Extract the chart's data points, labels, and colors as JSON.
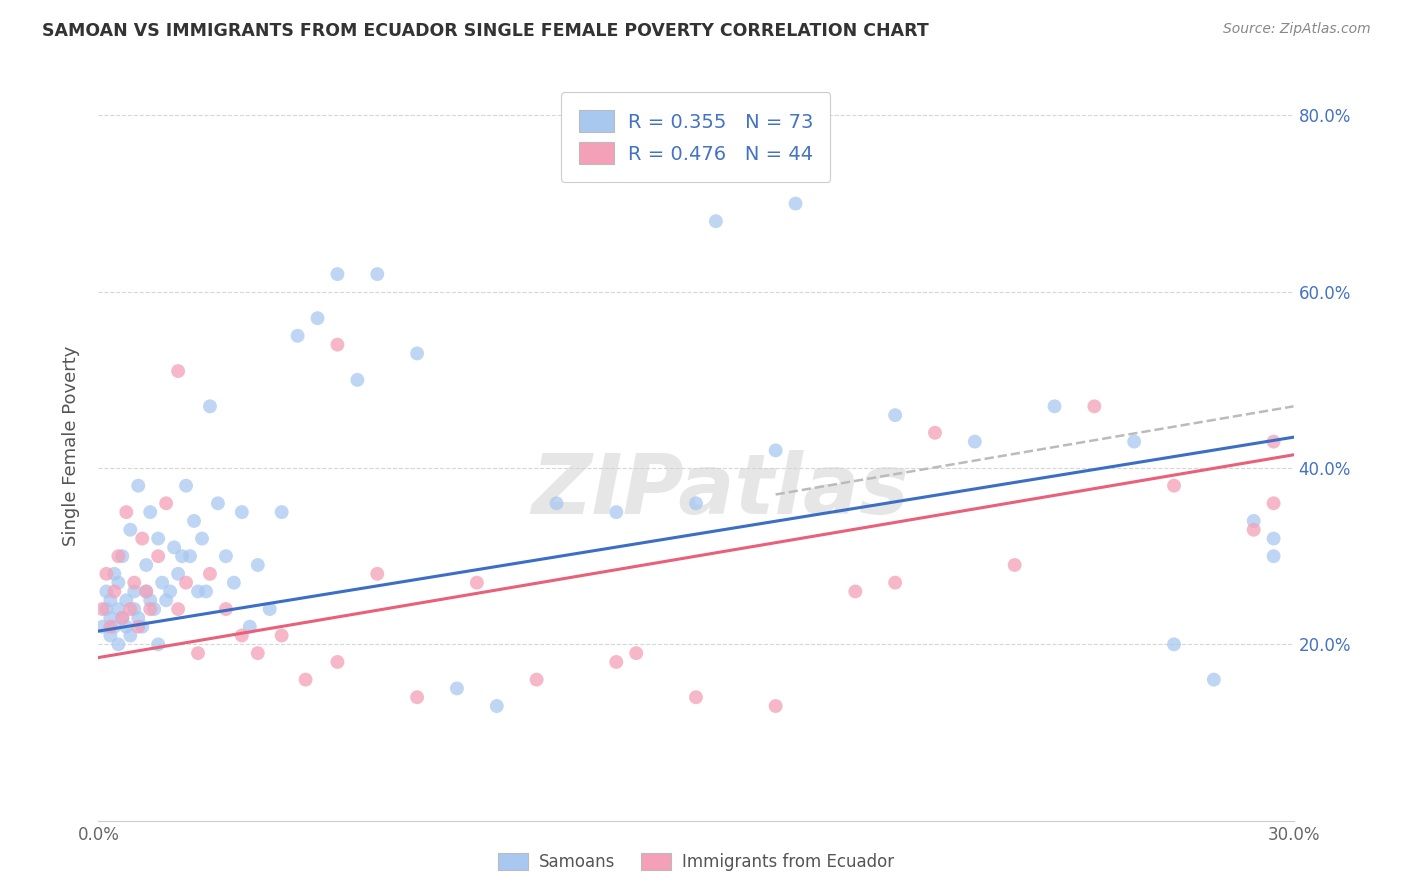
{
  "title": "SAMOAN VS IMMIGRANTS FROM ECUADOR SINGLE FEMALE POVERTY CORRELATION CHART",
  "source": "Source: ZipAtlas.com",
  "ylabel": "Single Female Poverty",
  "ylabel_right_labels": [
    "20.0%",
    "40.0%",
    "60.0%",
    "80.0%"
  ],
  "ylabel_right_values": [
    0.2,
    0.4,
    0.6,
    0.8
  ],
  "xmin": 0.0,
  "xmax": 0.3,
  "ymin": 0.0,
  "ymax": 0.85,
  "legend_samoans_R": "0.355",
  "legend_samoans_N": "73",
  "legend_ecuador_R": "0.476",
  "legend_ecuador_N": "44",
  "color_blue": "#A8C8F0",
  "color_pink": "#F4A0B8",
  "color_blue_line": "#3B6EC4",
  "color_pink_line": "#E8607A",
  "color_dashed": "#BBBBBB",
  "watermark": "ZIPatlas",
  "background_color": "#FFFFFF",
  "grid_color": "#CCCCCC",
  "samoans_x": [
    0.001,
    0.002,
    0.002,
    0.003,
    0.003,
    0.003,
    0.004,
    0.004,
    0.005,
    0.005,
    0.005,
    0.006,
    0.006,
    0.007,
    0.007,
    0.008,
    0.008,
    0.009,
    0.009,
    0.01,
    0.01,
    0.011,
    0.012,
    0.012,
    0.013,
    0.013,
    0.014,
    0.015,
    0.015,
    0.016,
    0.017,
    0.018,
    0.019,
    0.02,
    0.021,
    0.022,
    0.023,
    0.024,
    0.025,
    0.026,
    0.027,
    0.028,
    0.03,
    0.032,
    0.034,
    0.036,
    0.038,
    0.04,
    0.043,
    0.046,
    0.05,
    0.055,
    0.06,
    0.065,
    0.07,
    0.08,
    0.09,
    0.1,
    0.115,
    0.13,
    0.15,
    0.17,
    0.2,
    0.22,
    0.24,
    0.26,
    0.27,
    0.28,
    0.29,
    0.295,
    0.295,
    0.155,
    0.175
  ],
  "samoans_y": [
    0.22,
    0.24,
    0.26,
    0.21,
    0.23,
    0.25,
    0.22,
    0.28,
    0.2,
    0.24,
    0.27,
    0.23,
    0.3,
    0.22,
    0.25,
    0.21,
    0.33,
    0.24,
    0.26,
    0.23,
    0.38,
    0.22,
    0.26,
    0.29,
    0.25,
    0.35,
    0.24,
    0.32,
    0.2,
    0.27,
    0.25,
    0.26,
    0.31,
    0.28,
    0.3,
    0.38,
    0.3,
    0.34,
    0.26,
    0.32,
    0.26,
    0.47,
    0.36,
    0.3,
    0.27,
    0.35,
    0.22,
    0.29,
    0.24,
    0.35,
    0.55,
    0.57,
    0.62,
    0.5,
    0.62,
    0.53,
    0.15,
    0.13,
    0.36,
    0.35,
    0.36,
    0.42,
    0.46,
    0.43,
    0.47,
    0.43,
    0.2,
    0.16,
    0.34,
    0.32,
    0.3,
    0.68,
    0.7
  ],
  "ecuador_x": [
    0.001,
    0.002,
    0.003,
    0.004,
    0.005,
    0.006,
    0.007,
    0.008,
    0.009,
    0.01,
    0.011,
    0.012,
    0.013,
    0.015,
    0.017,
    0.02,
    0.022,
    0.025,
    0.028,
    0.032,
    0.036,
    0.04,
    0.046,
    0.052,
    0.06,
    0.07,
    0.08,
    0.095,
    0.11,
    0.13,
    0.15,
    0.17,
    0.19,
    0.21,
    0.23,
    0.25,
    0.27,
    0.29,
    0.295,
    0.295,
    0.2,
    0.135,
    0.06,
    0.02
  ],
  "ecuador_y": [
    0.24,
    0.28,
    0.22,
    0.26,
    0.3,
    0.23,
    0.35,
    0.24,
    0.27,
    0.22,
    0.32,
    0.26,
    0.24,
    0.3,
    0.36,
    0.24,
    0.27,
    0.19,
    0.28,
    0.24,
    0.21,
    0.19,
    0.21,
    0.16,
    0.18,
    0.28,
    0.14,
    0.27,
    0.16,
    0.18,
    0.14,
    0.13,
    0.26,
    0.44,
    0.29,
    0.47,
    0.38,
    0.33,
    0.43,
    0.36,
    0.27,
    0.19,
    0.54,
    0.51
  ]
}
